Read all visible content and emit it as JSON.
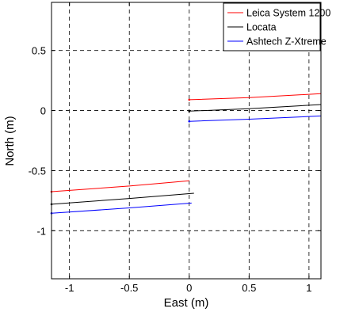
{
  "chart_data": {
    "type": "line",
    "title": "",
    "xlabel": "East (m)",
    "ylabel": "North (m)",
    "xlim": [
      -1.15,
      1.1
    ],
    "ylim": [
      -1.4,
      0.9
    ],
    "xticks": [
      -1,
      -0.5,
      0,
      0.5,
      1
    ],
    "xtick_labels": [
      "-1",
      "-0.5",
      "0",
      "0.5",
      "1"
    ],
    "yticks": [
      -1,
      -0.5,
      0,
      0.5
    ],
    "ytick_labels": [
      "-1",
      "-0.5",
      "0",
      "0.5"
    ],
    "grid": true,
    "grid_style": "dashed",
    "legend_position": "top-right",
    "series": [
      {
        "name": "Leica System 1200",
        "color": "#ff0000",
        "segments": [
          {
            "x": [
              -1.15,
              -0.5,
              0.0
            ],
            "y": [
              -0.675,
              -0.628,
              -0.585
            ]
          },
          {
            "x": [
              0.0,
              0.5,
              1.1
            ],
            "y": [
              0.09,
              0.108,
              0.14
            ]
          }
        ]
      },
      {
        "name": "Locata",
        "color": "#000000",
        "segments": [
          {
            "x": [
              -1.15,
              -0.5,
              0.04
            ],
            "y": [
              -0.78,
              -0.732,
              -0.688
            ]
          },
          {
            "x": [
              0.0,
              0.5,
              1.1
            ],
            "y": [
              -0.005,
              0.015,
              0.05
            ]
          }
        ]
      },
      {
        "name": "Ashtech Z-Xtreme",
        "color": "#0000ff",
        "segments": [
          {
            "x": [
              -1.15,
              -0.5,
              0.02
            ],
            "y": [
              -0.855,
              -0.81,
              -0.77
            ]
          },
          {
            "x": [
              0.0,
              0.5,
              1.1
            ],
            "y": [
              -0.09,
              -0.072,
              -0.045
            ]
          }
        ]
      }
    ]
  }
}
